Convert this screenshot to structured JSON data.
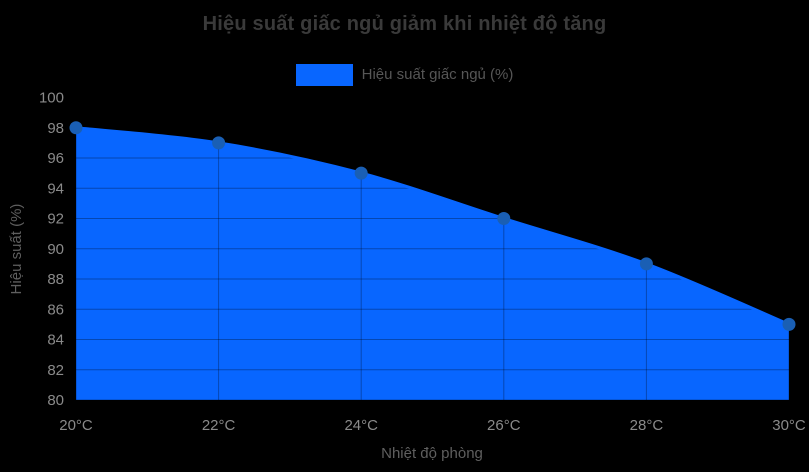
{
  "title": "Hiệu suất giấc ngủ giảm khi nhiệt độ tăng",
  "legend": {
    "label": "Hiệu suất giấc ngủ (%)",
    "swatch_color": "#0866ff"
  },
  "axes": {
    "x": {
      "title": "Nhiệt độ phòng",
      "tick_labels": [
        "20°C",
        "22°C",
        "24°C",
        "26°C",
        "28°C",
        "30°C"
      ]
    },
    "y": {
      "title": "Hiệu suất (%)",
      "min": 80,
      "max": 100,
      "step": 2
    }
  },
  "chart_data": {
    "type": "area",
    "title": "Hiệu suất giấc ngủ giảm khi nhiệt độ tăng",
    "categories": [
      "20°C",
      "22°C",
      "24°C",
      "26°C",
      "28°C",
      "30°C"
    ],
    "x": [
      20,
      22,
      24,
      26,
      28,
      30
    ],
    "series": [
      {
        "name": "Hiệu suất giấc ngủ (%)",
        "values": [
          98,
          97,
          95,
          92,
          89,
          85
        ]
      }
    ],
    "xlabel": "Nhiệt độ phòng",
    "ylabel": "Hiệu suất (%)",
    "ylim": [
      80,
      100
    ],
    "y_tick_step": 2,
    "grid": true,
    "legend_position": "top",
    "line_smoothing": true,
    "colors": {
      "background": "#000000",
      "area_fill": "#0866ff",
      "line": "#0866ff",
      "marker": "#1a5fb4",
      "gridline": "rgba(0,0,0,0.3)",
      "title_text": "#3a3a3a",
      "tick_text": "#8a8a8a",
      "axis_title_text": "#5f5f5f",
      "legend_text": "#565656"
    }
  }
}
